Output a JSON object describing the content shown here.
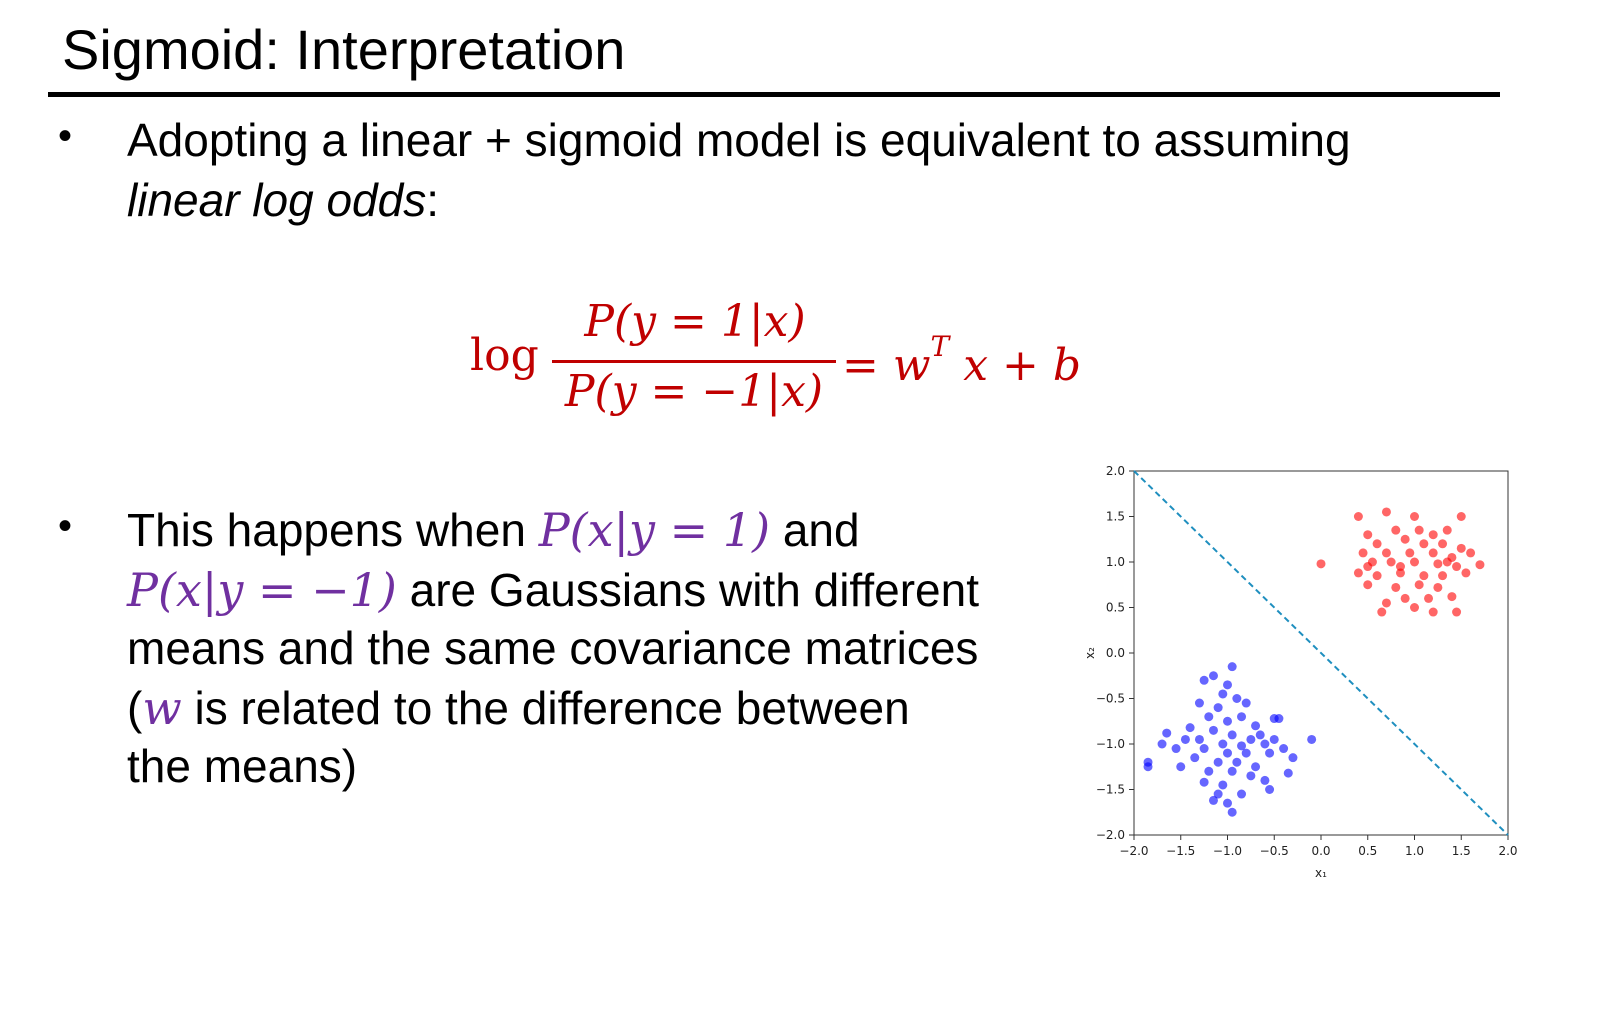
{
  "slide": {
    "title": "Sigmoid: Interpretation",
    "bullet1": {
      "line1": "Adopting a linear + sigmoid model is equivalent to assuming",
      "line2_italic": "linear log odds",
      "line2_tail": ":"
    },
    "equation": {
      "log": "log",
      "numerator": "P(y = 1|x)",
      "denominator": "P(y = −1|x)",
      "rhs": "= w",
      "rhs_sup": "T",
      "rhs_tail": "x + b"
    },
    "bullet2": {
      "l1_a": "This happens when ",
      "l1_math": "P(x|y = 1)",
      "l1_b": " and",
      "l2_math": "P(x|y = −1)",
      "l2_b": " are Gaussians with different",
      "l3": "means and the same covariance matrices",
      "l4_a": "(",
      "l4_math": "w",
      "l4_b": " is related to the difference between",
      "l5": "the means)"
    },
    "bullet_glyph": "•"
  },
  "chart_data": {
    "type": "scatter",
    "xlabel": "x₁",
    "ylabel": "x₂",
    "xlim": [
      -2.0,
      2.0
    ],
    "ylim": [
      -2.0,
      2.0
    ],
    "x_ticks": [
      "−2.0",
      "−1.5",
      "−1.0",
      "−0.5",
      "0.0",
      "0.5",
      "1.0",
      "1.5",
      "2.0"
    ],
    "y_ticks": [
      "2.0",
      "1.5",
      "1.0",
      "0.5",
      "0.0",
      "−0.5",
      "−1.0",
      "−1.5",
      "−2.0"
    ],
    "grid": false,
    "decision_boundary": {
      "x": [
        -2.0,
        2.0
      ],
      "y": [
        2.0,
        -2.0
      ],
      "style": "dashed",
      "color": "#1f8fbf"
    },
    "series": [
      {
        "color": "#ff0000",
        "points": [
          [
            0.4,
            1.5
          ],
          [
            0.7,
            1.55
          ],
          [
            1.0,
            1.5
          ],
          [
            1.5,
            1.5
          ],
          [
            0.5,
            1.3
          ],
          [
            0.8,
            1.35
          ],
          [
            1.2,
            1.3
          ],
          [
            1.35,
            1.35
          ],
          [
            0.6,
            1.2
          ],
          [
            0.9,
            1.25
          ],
          [
            1.1,
            1.2
          ],
          [
            1.3,
            1.2
          ],
          [
            1.5,
            1.15
          ],
          [
            0.45,
            1.1
          ],
          [
            0.7,
            1.1
          ],
          [
            0.95,
            1.1
          ],
          [
            1.2,
            1.1
          ],
          [
            1.4,
            1.05
          ],
          [
            1.6,
            1.1
          ],
          [
            0.0,
            0.98
          ],
          [
            0.5,
            0.95
          ],
          [
            0.75,
            1.0
          ],
          [
            1.0,
            1.0
          ],
          [
            1.25,
            0.98
          ],
          [
            1.45,
            0.95
          ],
          [
            1.7,
            0.97
          ],
          [
            0.4,
            0.88
          ],
          [
            0.6,
            0.85
          ],
          [
            0.85,
            0.88
          ],
          [
            1.1,
            0.85
          ],
          [
            1.3,
            0.85
          ],
          [
            1.55,
            0.88
          ],
          [
            0.5,
            0.75
          ],
          [
            0.8,
            0.72
          ],
          [
            1.05,
            0.75
          ],
          [
            1.25,
            0.72
          ],
          [
            0.9,
            0.6
          ],
          [
            1.15,
            0.6
          ],
          [
            1.4,
            0.62
          ],
          [
            0.7,
            0.55
          ],
          [
            1.0,
            0.5
          ],
          [
            0.65,
            0.45
          ],
          [
            1.2,
            0.45
          ],
          [
            1.45,
            0.45
          ],
          [
            0.85,
            0.95
          ],
          [
            1.35,
            1.0
          ],
          [
            1.05,
            1.35
          ],
          [
            0.55,
            1.0
          ]
        ]
      },
      {
        "color": "#0000ff",
        "points": [
          [
            -0.95,
            -0.15
          ],
          [
            -1.15,
            -0.25
          ],
          [
            -1.25,
            -0.3
          ],
          [
            -1.05,
            -0.45
          ],
          [
            -0.9,
            -0.5
          ],
          [
            -1.3,
            -0.55
          ],
          [
            -1.1,
            -0.6
          ],
          [
            -0.85,
            -0.7
          ],
          [
            -1.2,
            -0.7
          ],
          [
            -1.0,
            -0.75
          ],
          [
            -0.7,
            -0.8
          ],
          [
            -0.5,
            -0.72
          ],
          [
            -0.45,
            -0.72
          ],
          [
            -1.4,
            -0.82
          ],
          [
            -1.15,
            -0.85
          ],
          [
            -0.95,
            -0.9
          ],
          [
            -0.75,
            -0.95
          ],
          [
            -1.65,
            -0.88
          ],
          [
            -1.3,
            -0.95
          ],
          [
            -1.05,
            -1.0
          ],
          [
            -0.85,
            -1.02
          ],
          [
            -0.6,
            -1.0
          ],
          [
            -0.4,
            -1.05
          ],
          [
            -0.1,
            -0.95
          ],
          [
            -1.55,
            -1.05
          ],
          [
            -1.25,
            -1.05
          ],
          [
            -1.0,
            -1.1
          ],
          [
            -0.8,
            -1.1
          ],
          [
            -0.55,
            -1.1
          ],
          [
            -1.35,
            -1.15
          ],
          [
            -1.1,
            -1.2
          ],
          [
            -0.9,
            -1.2
          ],
          [
            -0.7,
            -1.25
          ],
          [
            -1.85,
            -1.2
          ],
          [
            -1.5,
            -1.25
          ],
          [
            -1.2,
            -1.3
          ],
          [
            -0.95,
            -1.3
          ],
          [
            -0.75,
            -1.35
          ],
          [
            -0.35,
            -1.32
          ],
          [
            -1.25,
            -1.42
          ],
          [
            -1.05,
            -1.45
          ],
          [
            -0.6,
            -1.4
          ],
          [
            -0.55,
            -1.5
          ],
          [
            -1.1,
            -1.55
          ],
          [
            -0.85,
            -1.55
          ],
          [
            -1.0,
            -1.65
          ],
          [
            -0.95,
            -1.75
          ],
          [
            -1.15,
            -1.62
          ],
          [
            -1.45,
            -0.95
          ],
          [
            -0.65,
            -0.9
          ],
          [
            -0.5,
            -0.95
          ],
          [
            -1.7,
            -1.0
          ],
          [
            -0.3,
            -1.15
          ],
          [
            -1.85,
            -1.25
          ],
          [
            -0.8,
            -0.55
          ],
          [
            -1.0,
            -0.35
          ]
        ]
      }
    ]
  }
}
